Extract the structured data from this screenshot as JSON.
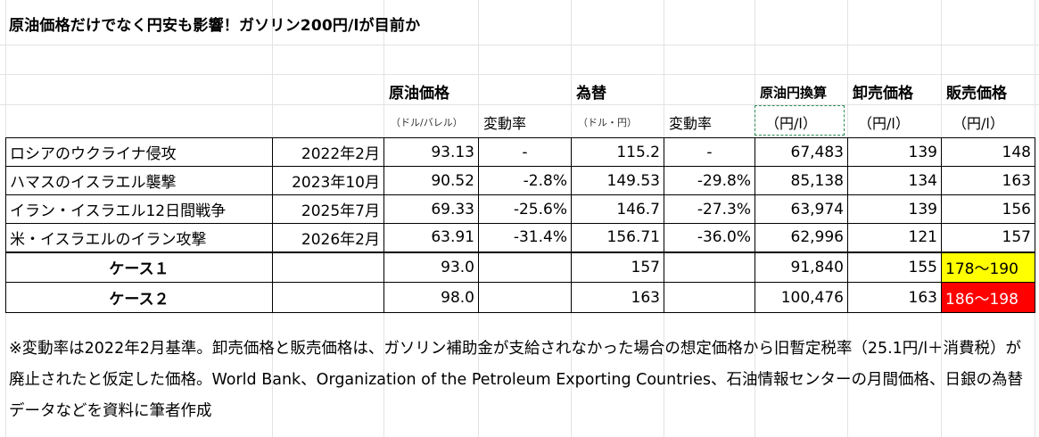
{
  "title": "原油価格だけでなく円安も影響！ガソリン200円/lが目前か",
  "headers": {
    "crude": "原油価格",
    "fx": "為替",
    "crude_yen": "原油円換算",
    "wholesale": "卸売価格",
    "retail": "販売価格",
    "crude_unit": "（ドル/バレル）",
    "crude_change": "変動率",
    "fx_unit": "（ドル・円）",
    "fx_change": "変動率",
    "crude_yen_unit": "（円/l）",
    "wholesale_unit": "（円/l）",
    "retail_unit": "（円/l）"
  },
  "rows": [
    {
      "event": "ロシアのウクライナ侵攻",
      "date": "2022年2月",
      "crude": "93.13",
      "crude_change": "-",
      "fx": "115.2",
      "fx_change": "-",
      "crude_yen": "67,483",
      "wholesale": "139",
      "retail": "148"
    },
    {
      "event": "ハマスのイスラエル襲撃",
      "date": "2023年10月",
      "crude": "90.52",
      "crude_change": "-2.8%",
      "fx": "149.53",
      "fx_change": "-29.8%",
      "crude_yen": "85,138",
      "wholesale": "134",
      "retail": "163"
    },
    {
      "event": "イラン・イスラエル12日間戦争",
      "date": "2025年7月",
      "crude": "69.33",
      "crude_change": "-25.6%",
      "fx": "146.7",
      "fx_change": "-27.3%",
      "crude_yen": "63,974",
      "wholesale": "139",
      "retail": "156"
    },
    {
      "event": "米・イスラエルのイラン攻撃",
      "date": "2026年2月",
      "crude": "63.91",
      "crude_change": "-31.4%",
      "fx": "156.71",
      "fx_change": "-36.0%",
      "crude_yen": "62,996",
      "wholesale": "121",
      "retail": "157"
    }
  ],
  "cases": [
    {
      "label": "ケース１",
      "crude": "93.0",
      "fx": "157",
      "crude_yen": "91,840",
      "wholesale": "155",
      "retail": "178～190",
      "highlight": "#ffff00"
    },
    {
      "label": "ケース２",
      "crude": "98.0",
      "fx": "163",
      "crude_yen": "100,476",
      "wholesale": "163",
      "retail": "186～198",
      "highlight": "#ff0000"
    }
  ],
  "note": "※変動率は2022年2月基準。卸売価格と販売価格は、ガソリン補助金が支給されなかった場合の想定価格から旧暫定税率（25.1円/l＋消費税）が廃止されたと仮定した価格。World Bank、Organization of the Petroleum Exporting Countries、石油情報センターの月間価格、日銀の為替データなどを資料に筆者作成"
}
